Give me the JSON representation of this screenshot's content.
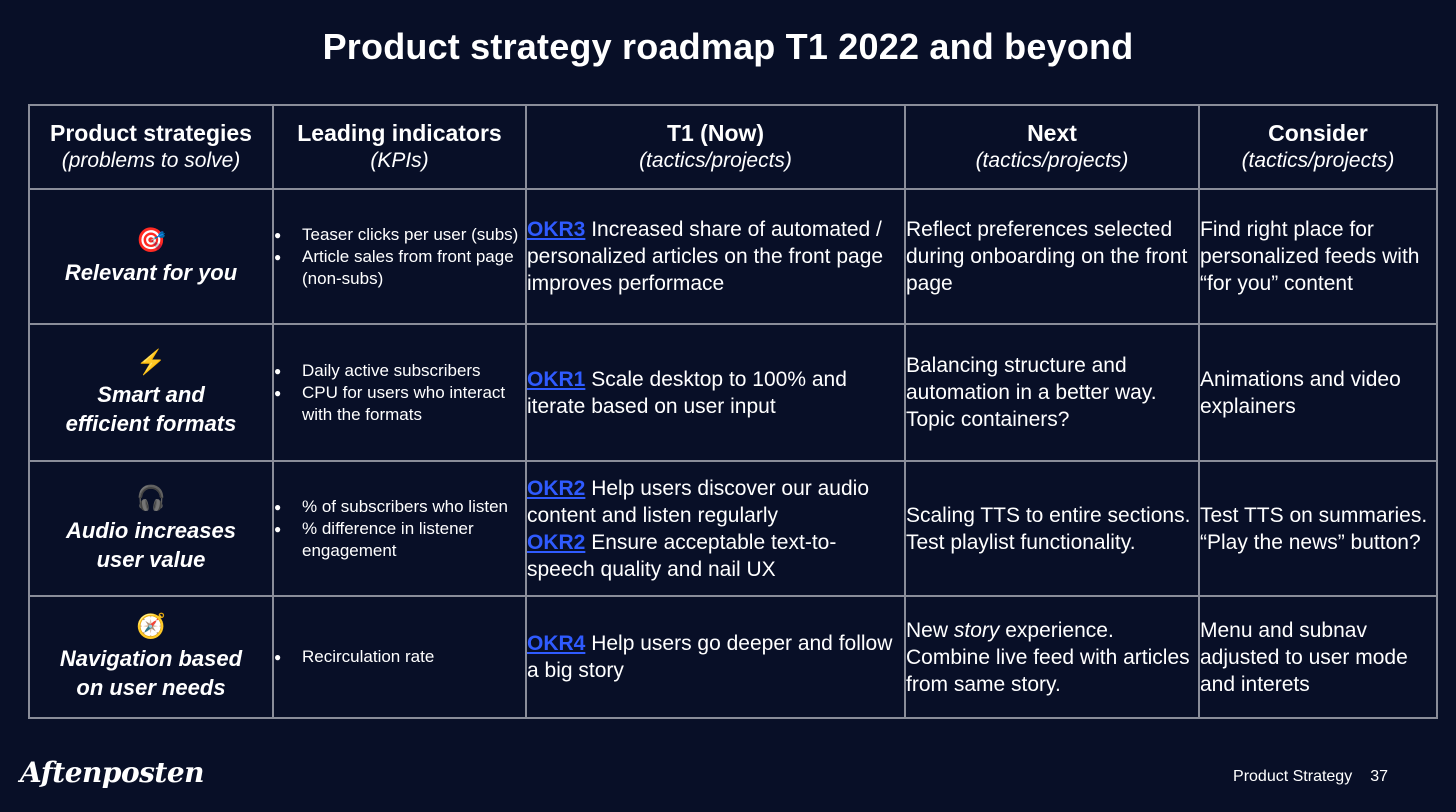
{
  "slide": {
    "title": "Product strategy roadmap T1 2022 and beyond"
  },
  "headers": [
    {
      "main": "Product strategies",
      "sub": "(problems to solve)"
    },
    {
      "main": "Leading indicators",
      "sub": "(KPIs)"
    },
    {
      "main": "T1 (Now)",
      "sub": "(tactics/projects)"
    },
    {
      "main": "Next",
      "sub": "(tactics/projects)"
    },
    {
      "main": "Consider",
      "sub": "(tactics/projects)"
    }
  ],
  "rows": [
    {
      "icon": "target-icon",
      "icon_glyph": "🎯",
      "strategy_line1": "Relevant for you",
      "strategy_line2": "",
      "kpis": [
        "Teaser clicks per user (subs)",
        "Article sales from front page (non-subs)"
      ],
      "now": [
        {
          "okr": "OKR3",
          "text": " Increased share of automated / personalized articles on the front page improves performace"
        }
      ],
      "next": "Reflect preferences selected during onboarding on the front page",
      "consider": "Find right place for personalized feeds with “for you” content"
    },
    {
      "icon": "lightning-icon",
      "icon_glyph": "⚡",
      "strategy_line1": "Smart and",
      "strategy_line2": "efficient formats",
      "kpis": [
        "Daily active subscribers",
        "CPU for users who interact with the formats"
      ],
      "now": [
        {
          "okr": "OKR1",
          "text": " Scale desktop to 100% and iterate based on user input"
        }
      ],
      "next": "Balancing structure and automation in a better way. Topic containers?",
      "consider": "Animations and video explainers"
    },
    {
      "icon": "headphones-icon",
      "icon_glyph": "🎧",
      "strategy_line1": "Audio increases",
      "strategy_line2": "user value",
      "kpis": [
        "% of subscribers who listen",
        "% difference in listener engagement"
      ],
      "now": [
        {
          "okr": "OKR2",
          "text": " Help users discover our audio content and listen regularly"
        },
        {
          "okr": "OKR2",
          "text": " Ensure acceptable text-to-speech quality and nail UX"
        }
      ],
      "next": "Scaling TTS to entire sections. Test playlist functionality.",
      "consider": "Test TTS on summaries. “Play the news” button?"
    },
    {
      "icon": "compass-icon",
      "icon_glyph": "🧭",
      "strategy_line1": "Navigation based",
      "strategy_line2": "on user needs",
      "kpis": [
        "Recirculation rate"
      ],
      "now": [
        {
          "okr": "OKR4",
          "text": " Help users go deeper and follow a big story"
        }
      ],
      "next_parts": {
        "before": "New ",
        "italic": "story",
        "after": " experience. Combine live feed with articles from same story."
      },
      "consider": "Menu and subnav adjusted to user mode and interets"
    }
  ],
  "footer": {
    "logo_text": "Aftenposten",
    "section": "Product Strategy",
    "page_number": "37"
  },
  "colors": {
    "background": "#080f27",
    "link": "#2f5bff",
    "grid": "#8a8d99"
  }
}
